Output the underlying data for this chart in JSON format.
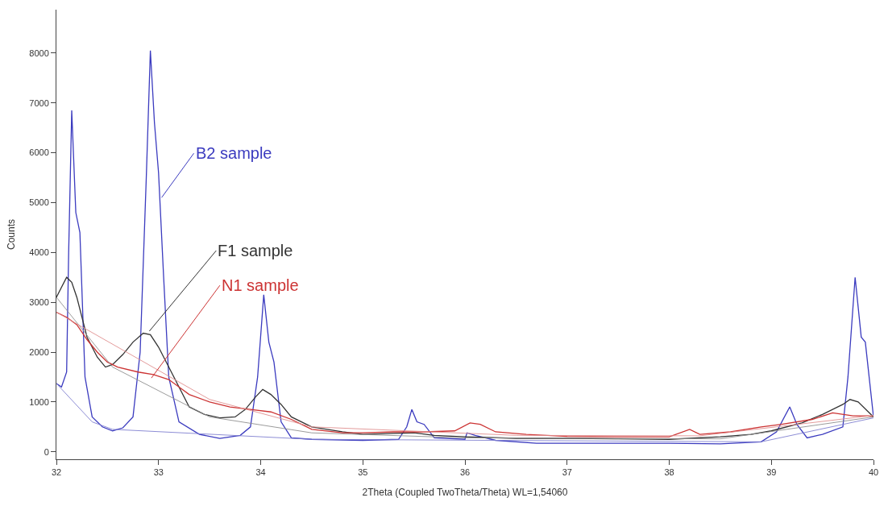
{
  "chart_data": {
    "type": "line",
    "xlabel": "2Theta (Coupled TwoTheta/Theta) WL=1,54060",
    "ylabel": "Counts",
    "xlim": [
      32,
      40
    ],
    "xticks": [
      32,
      33,
      34,
      35,
      36,
      37,
      38,
      39,
      40
    ],
    "ylim": [
      -150,
      8870
    ],
    "yticks": [
      0,
      1000,
      2000,
      3000,
      4000,
      5000,
      6000,
      7000,
      8000
    ],
    "marker": "none",
    "line_style": "solid",
    "annotations": [
      {
        "text": "B2 sample",
        "x": 33.03,
        "y": 5100
      },
      {
        "text": "F1 sample",
        "x": 32.91,
        "y": 2420
      },
      {
        "text": "N1 sample",
        "x": 32.93,
        "y": 1480
      }
    ],
    "series": [
      {
        "color": "#3b3bbf",
        "x": [
          32.0,
          32.05,
          32.1,
          32.12,
          32.15,
          32.19,
          32.23,
          32.28,
          32.35,
          32.45,
          32.55,
          32.65,
          32.75,
          32.82,
          32.88,
          32.92,
          32.96,
          33.0,
          33.05,
          33.1,
          33.2,
          33.4,
          33.6,
          33.8,
          33.9,
          33.97,
          34.03,
          34.08,
          34.13,
          34.2,
          34.3,
          34.5,
          35.0,
          35.35,
          35.43,
          35.48,
          35.53,
          35.6,
          35.7,
          36.0,
          36.02,
          36.1,
          36.3,
          36.7,
          37.0,
          37.5,
          38.0,
          38.5,
          38.9,
          39.05,
          39.18,
          39.25,
          39.35,
          39.5,
          39.7,
          39.75,
          39.82,
          39.88,
          39.92,
          40.0
        ],
        "values": [
          1370,
          1300,
          1600,
          4000,
          6850,
          4800,
          4400,
          1500,
          700,
          500,
          420,
          480,
          700,
          2000,
          5500,
          8050,
          6600,
          5600,
          3500,
          1500,
          600,
          350,
          270,
          330,
          500,
          1500,
          3150,
          2200,
          1800,
          600,
          280,
          250,
          230,
          250,
          500,
          850,
          600,
          550,
          280,
          250,
          380,
          330,
          230,
          170,
          170,
          170,
          170,
          160,
          200,
          400,
          900,
          550,
          280,
          350,
          500,
          1500,
          3500,
          2300,
          2200,
          700
        ]
      },
      {
        "color": "#333333",
        "x": [
          32.0,
          32.05,
          32.1,
          32.15,
          32.2,
          32.3,
          32.4,
          32.48,
          32.55,
          32.65,
          32.75,
          32.85,
          32.92,
          33.0,
          33.1,
          33.2,
          33.3,
          33.45,
          33.6,
          33.75,
          33.85,
          33.95,
          34.02,
          34.1,
          34.2,
          34.3,
          34.5,
          34.8,
          35.0,
          35.3,
          35.5,
          35.7,
          36.0,
          36.5,
          37.0,
          37.5,
          38.0,
          38.5,
          38.8,
          39.0,
          39.3,
          39.5,
          39.7,
          39.77,
          39.85,
          39.95,
          40.0
        ],
        "values": [
          3100,
          3300,
          3500,
          3400,
          3100,
          2300,
          1900,
          1700,
          1750,
          1950,
          2200,
          2380,
          2350,
          2100,
          1700,
          1300,
          900,
          750,
          680,
          700,
          850,
          1100,
          1250,
          1150,
          950,
          700,
          500,
          400,
          350,
          370,
          380,
          330,
          300,
          270,
          270,
          260,
          250,
          300,
          350,
          420,
          580,
          750,
          950,
          1050,
          1000,
          800,
          700
        ]
      },
      {
        "color": "#cc3333",
        "x": [
          32.0,
          32.1,
          32.2,
          32.3,
          32.4,
          32.5,
          32.6,
          32.8,
          32.95,
          33.1,
          33.2,
          33.3,
          33.5,
          33.7,
          33.9,
          34.1,
          34.3,
          34.5,
          34.8,
          35.0,
          35.3,
          35.6,
          35.9,
          36.05,
          36.15,
          36.3,
          36.6,
          37.0,
          37.5,
          38.0,
          38.2,
          38.3,
          38.6,
          38.9,
          39.1,
          39.4,
          39.6,
          39.8,
          39.95,
          40.0
        ],
        "values": [
          2800,
          2700,
          2550,
          2250,
          2000,
          1800,
          1700,
          1600,
          1550,
          1450,
          1300,
          1150,
          1000,
          900,
          850,
          800,
          650,
          450,
          380,
          380,
          400,
          400,
          420,
          580,
          550,
          400,
          350,
          310,
          300,
          300,
          450,
          350,
          400,
          500,
          550,
          650,
          780,
          720,
          720,
          700
        ]
      },
      {
        "color": "#8080d0",
        "x": [
          32.0,
          32.35,
          32.55,
          34.5,
          38.9,
          40.0
        ],
        "values": [
          1370,
          600,
          450,
          250,
          200,
          680
        ]
      },
      {
        "color": "#909090",
        "x": [
          32.0,
          32.55,
          33.5,
          34.5,
          36.0,
          38.5,
          40.0
        ],
        "values": [
          3100,
          1700,
          700,
          380,
          280,
          260,
          700
        ]
      },
      {
        "color": "#e09090",
        "x": [
          32.0,
          33.5,
          34.5,
          36.5,
          38.3,
          40.0
        ],
        "values": [
          2800,
          1050,
          500,
          330,
          320,
          730
        ]
      }
    ]
  }
}
